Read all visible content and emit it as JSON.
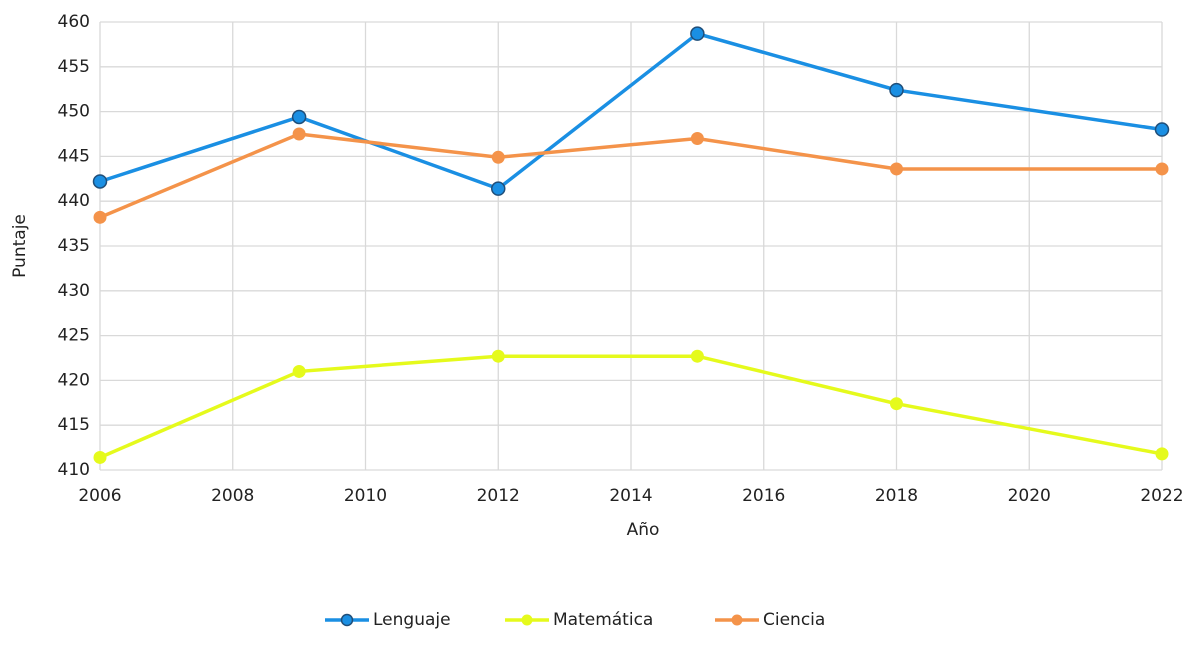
{
  "chart_data": {
    "type": "line",
    "xlabel": "Año",
    "ylabel": "Puntaje",
    "x": [
      2006,
      2009,
      2012,
      2015,
      2018,
      2022
    ],
    "series": [
      {
        "name": "Lenguaje",
        "color": "#1a8fe3",
        "values": [
          442.2,
          449.4,
          441.4,
          458.7,
          452.4,
          448.0
        ]
      },
      {
        "name": "Matemática",
        "color": "#e5fa1c",
        "values": [
          411.4,
          421.0,
          422.7,
          422.7,
          417.4,
          411.8
        ]
      },
      {
        "name": "Ciencia",
        "color": "#f4934a",
        "values": [
          438.2,
          447.5,
          444.9,
          447.0,
          443.6,
          443.6
        ]
      }
    ],
    "xlim": [
      2006,
      2022
    ],
    "xticks": [
      2006,
      2008,
      2010,
      2012,
      2014,
      2016,
      2018,
      2020,
      2022
    ],
    "ylim": [
      410,
      460
    ],
    "yticks": [
      410,
      415,
      420,
      425,
      430,
      435,
      440,
      445,
      450,
      455,
      460
    ],
    "grid": true,
    "legend": "bottom"
  }
}
